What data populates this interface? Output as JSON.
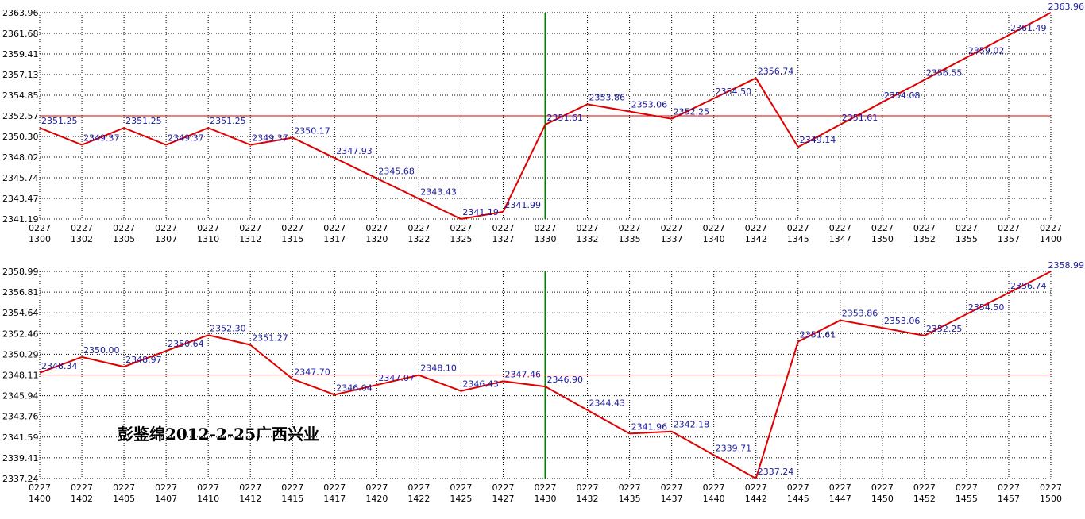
{
  "caption": "彭鉴绵2012-2-25广西兴业",
  "chart_data": [
    {
      "type": "line",
      "x_top": [
        "0227",
        "0227",
        "0227",
        "0227",
        "0227",
        "0227",
        "0227",
        "0227",
        "0227",
        "0227",
        "0227",
        "0227",
        "0227",
        "0227",
        "0227",
        "0227",
        "0227",
        "0227",
        "0227",
        "0227",
        "0227",
        "0227",
        "0227",
        "0227",
        "0227"
      ],
      "x_bottom": [
        "1300",
        "1302",
        "1305",
        "1307",
        "1310",
        "1312",
        "1315",
        "1317",
        "1320",
        "1322",
        "1325",
        "1327",
        "1330",
        "1332",
        "1335",
        "1337",
        "1340",
        "1342",
        "1345",
        "1347",
        "1350",
        "1352",
        "1355",
        "1357",
        "1400"
      ],
      "yticks": [
        "2363.96",
        "2361.68",
        "2359.41",
        "2357.13",
        "2354.85",
        "2352.57",
        "2350.30",
        "2348.02",
        "2345.74",
        "2343.47",
        "2341.19"
      ],
      "ylim": [
        2341.19,
        2363.96
      ],
      "reference_line": 2352.57,
      "marker_index": 12,
      "values": [
        2351.25,
        2349.37,
        2351.25,
        2349.37,
        2351.25,
        2349.37,
        2350.17,
        2347.93,
        2345.68,
        2343.43,
        2341.19,
        2341.99,
        2351.61,
        2353.86,
        2353.06,
        2352.25,
        2354.5,
        2356.74,
        2349.14,
        2351.61,
        2354.08,
        2356.55,
        2359.02,
        2361.49,
        2363.96
      ],
      "labels": [
        "2351.25",
        "2349.37",
        "2351.25",
        "2349.37",
        "2351.25",
        "2349.37",
        "2350.17",
        "2347.93",
        "2345.68",
        "2343.43",
        "2341.19",
        "2341.99",
        "2351.61",
        "2353.86",
        "2353.06",
        "2352.25",
        "2354.50",
        "2356.74",
        "2349.14",
        "2351.61",
        "2354.08",
        "2356.55",
        "2359.02",
        "2361.49",
        "2363.96"
      ],
      "colors": {
        "line": "#e00000",
        "marker": "#008000",
        "grid": "#000000",
        "label": "#1a1aa0"
      }
    },
    {
      "type": "line",
      "x_top": [
        "0227",
        "0227",
        "0227",
        "0227",
        "0227",
        "0227",
        "0227",
        "0227",
        "0227",
        "0227",
        "0227",
        "0227",
        "0227",
        "0227",
        "0227",
        "0227",
        "0227",
        "0227",
        "0227",
        "0227",
        "0227",
        "0227",
        "0227",
        "0227",
        "0227"
      ],
      "x_bottom": [
        "1400",
        "1402",
        "1405",
        "1407",
        "1410",
        "1412",
        "1415",
        "1417",
        "1420",
        "1422",
        "1425",
        "1427",
        "1430",
        "1432",
        "1435",
        "1437",
        "1440",
        "1442",
        "1445",
        "1447",
        "1450",
        "1452",
        "1455",
        "1457",
        "1500"
      ],
      "yticks": [
        "2358.99",
        "2356.81",
        "2354.64",
        "2352.46",
        "2350.29",
        "2348.11",
        "2345.94",
        "2343.76",
        "2341.59",
        "2339.41",
        "2337.24"
      ],
      "ylim": [
        2337.24,
        2358.99
      ],
      "reference_line": 2348.11,
      "marker_index": 12,
      "values": [
        2348.34,
        2350.0,
        2348.97,
        2350.64,
        2352.3,
        2351.27,
        2347.7,
        2346.04,
        2347.07,
        2348.1,
        2346.43,
        2347.46,
        2346.9,
        2344.43,
        2341.96,
        2342.18,
        2339.71,
        2337.24,
        2351.61,
        2353.86,
        2353.06,
        2352.25,
        2354.5,
        2356.74,
        2358.99
      ],
      "labels": [
        "2348.34",
        "2350.00",
        "2348.97",
        "2350.64",
        "2352.30",
        "2351.27",
        "2347.70",
        "2346.04",
        "2347.07",
        "2348.10",
        "2346.43",
        "2347.46",
        "2346.90",
        "2344.43",
        "2341.96",
        "2342.18",
        "2339.71",
        "2337.24",
        "2351.61",
        "2353.86",
        "2353.06",
        "2352.25",
        "2354.50",
        "2356.74",
        "2358.99"
      ],
      "colors": {
        "line": "#e00000",
        "marker": "#008000",
        "grid": "#000000",
        "label": "#1a1aa0"
      }
    }
  ]
}
